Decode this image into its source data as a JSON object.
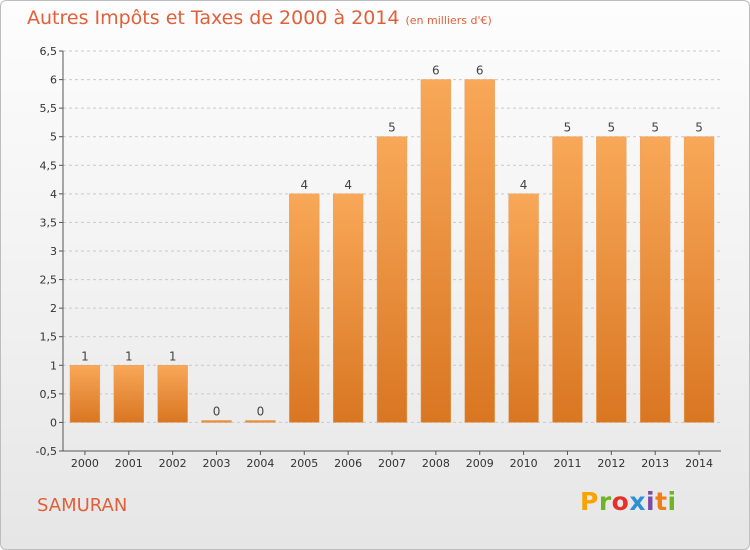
{
  "title": "Autres Impôts et Taxes de 2000 à 2014",
  "subtitle": "(en milliers d'€)",
  "commune": "SAMURAN",
  "logo": {
    "p": "P",
    "r": "r",
    "o": "o",
    "x": "x",
    "i": "i",
    "t": "t",
    "i2": "i"
  },
  "colors": {
    "bar_top": "#f8a858",
    "bar_bottom": "#d97622",
    "title": "#e0603a"
  },
  "chart_data": {
    "type": "bar",
    "title": "Autres Impôts et Taxes de 2000 à 2014",
    "categories": [
      "2000",
      "2001",
      "2002",
      "2003",
      "2004",
      "2005",
      "2006",
      "2007",
      "2008",
      "2009",
      "2010",
      "2011",
      "2012",
      "2013",
      "2014"
    ],
    "values": [
      1,
      1,
      1,
      0,
      0,
      4,
      4,
      5,
      6,
      6,
      4,
      5,
      5,
      5,
      5
    ],
    "ylim": [
      -0.5,
      6.5
    ],
    "yticks": [
      "-0,5",
      "0",
      "0,5",
      "1",
      "1,5",
      "2",
      "2,5",
      "3",
      "3,5",
      "4",
      "4,5",
      "5",
      "5,5",
      "6",
      "6,5"
    ],
    "xlabel": "",
    "ylabel": "",
    "grid": "horizontal dashed"
  }
}
